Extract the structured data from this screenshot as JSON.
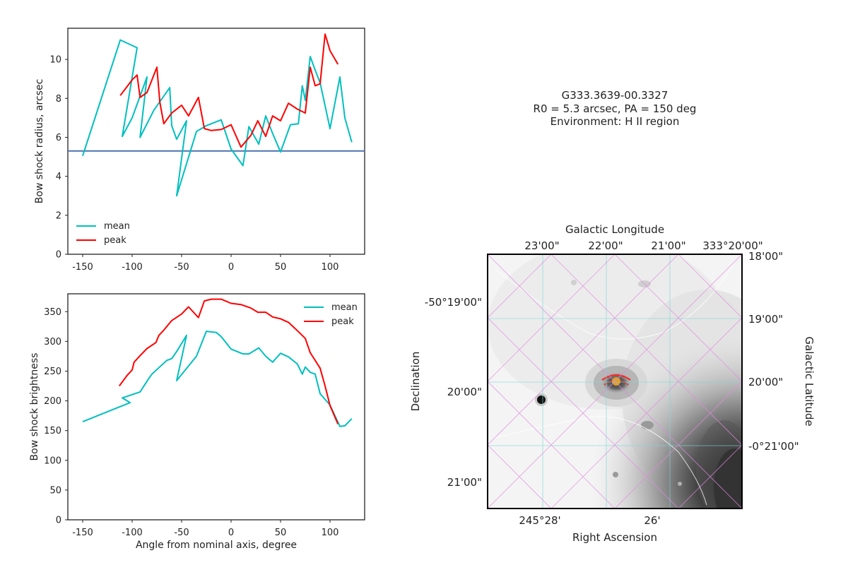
{
  "info": {
    "lines": [
      "G333.3639-00.3327",
      "R0 = 5.3 arcsec, PA = 150 deg",
      "Environment: H II region"
    ]
  },
  "colors": {
    "mean": "#00bfbf",
    "peak": "#ff0000",
    "r0_line": "#4c72b0",
    "axes": "#222222"
  },
  "chart_data": [
    {
      "type": "line",
      "id": "radius",
      "xlabel": "",
      "ylabel": "Bow shock radius, arcsec",
      "xlim": [
        -165,
        135
      ],
      "ylim": [
        0,
        11.6
      ],
      "xticks": [
        -150,
        -100,
        -50,
        0,
        50,
        100
      ],
      "yticks": [
        0,
        2,
        4,
        6,
        8,
        10
      ],
      "legend_loc": "lower-left",
      "hline": {
        "y": 5.3
      },
      "series": [
        {
          "name": "mean",
          "x": [
            -150,
            -112,
            -95,
            -110,
            -100,
            -85,
            -92,
            -78,
            -62,
            -60,
            -55,
            -45,
            -55,
            -35,
            -25,
            -10,
            0,
            12,
            18,
            28,
            35,
            42,
            50,
            60,
            68,
            72,
            75,
            80,
            85,
            90,
            100,
            110,
            115,
            122
          ],
          "y": [
            5.05,
            11.0,
            10.6,
            6.05,
            7.0,
            9.1,
            6.0,
            7.4,
            8.55,
            6.6,
            5.9,
            6.85,
            3.0,
            6.3,
            6.6,
            6.9,
            5.4,
            4.55,
            6.55,
            5.65,
            7.1,
            6.2,
            5.25,
            6.65,
            6.7,
            8.65,
            7.9,
            10.15,
            9.45,
            8.8,
            6.45,
            9.1,
            7.0,
            5.75
          ]
        },
        {
          "name": "peak",
          "x": [
            -112,
            -100,
            -95,
            -92,
            -85,
            -75,
            -72,
            -68,
            -60,
            -50,
            -43,
            -33,
            -27,
            -20,
            -10,
            0,
            10,
            20,
            27,
            35,
            42,
            50,
            58,
            67,
            75,
            80,
            85,
            90,
            95,
            100,
            108
          ],
          "y": [
            8.15,
            8.95,
            9.2,
            8.05,
            8.3,
            9.6,
            7.8,
            6.7,
            7.25,
            7.65,
            7.1,
            8.05,
            6.45,
            6.35,
            6.4,
            6.65,
            5.5,
            6.1,
            6.85,
            6.05,
            7.1,
            6.85,
            7.75,
            7.45,
            7.25,
            9.6,
            8.65,
            8.75,
            11.3,
            10.45,
            9.75
          ]
        }
      ]
    },
    {
      "type": "line",
      "id": "brightness",
      "xlabel": "Angle from nominal axis, degree",
      "ylabel": "Bow shock brightness",
      "xlim": [
        -165,
        135
      ],
      "ylim": [
        0,
        380
      ],
      "xticks": [
        -150,
        -100,
        -50,
        0,
        50,
        100
      ],
      "yticks": [
        0,
        50,
        100,
        150,
        200,
        250,
        300,
        350
      ],
      "legend_loc": "upper-right",
      "series": [
        {
          "name": "mean",
          "x": [
            -150,
            -102,
            -110,
            -92,
            -83,
            -80,
            -65,
            -60,
            -55,
            -45,
            -55,
            -35,
            -25,
            -15,
            -10,
            0,
            12,
            18,
            28,
            35,
            42,
            50,
            58,
            67,
            72,
            75,
            80,
            85,
            90,
            100,
            110,
            115,
            122
          ],
          "y": [
            165,
            197,
            205,
            215,
            238,
            245,
            268,
            271,
            283,
            310,
            234,
            275,
            317,
            315,
            308,
            287,
            279,
            279,
            289,
            275,
            265,
            280,
            274,
            262,
            245,
            257,
            248,
            245,
            212,
            193,
            157,
            158,
            170
          ]
        },
        {
          "name": "peak",
          "x": [
            -113,
            -105,
            -100,
            -98,
            -92,
            -85,
            -76,
            -73,
            -68,
            -60,
            -50,
            -43,
            -33,
            -27,
            -20,
            -10,
            0,
            10,
            20,
            27,
            35,
            42,
            50,
            58,
            67,
            75,
            80,
            85,
            90,
            95,
            100,
            108
          ],
          "y": [
            225,
            243,
            252,
            265,
            276,
            288,
            298,
            310,
            319,
            335,
            346,
            358,
            340,
            368,
            371,
            371,
            364,
            362,
            356,
            349,
            349,
            341,
            338,
            332,
            318,
            305,
            281,
            268,
            255,
            225,
            192,
            161
          ]
        }
      ]
    }
  ],
  "sky": {
    "top_axis_label": "Galactic Longitude",
    "top_ticks": [
      "23'00\"",
      "22'00\"",
      "21'00\"",
      "333°20'00\""
    ],
    "left_axis_label": "Declination",
    "left_ticks": [
      "-50°19'00\"",
      "20'00\"",
      "21'00\""
    ],
    "right_axis_label": "Galactic Latitude",
    "right_ticks": [
      "18'00\"",
      "19'00\"",
      "20'00\"",
      "-0°21'00\""
    ],
    "bottom_axis_label": "Right Ascension",
    "bottom_ticks": [
      "245°28'",
      "26'"
    ]
  }
}
